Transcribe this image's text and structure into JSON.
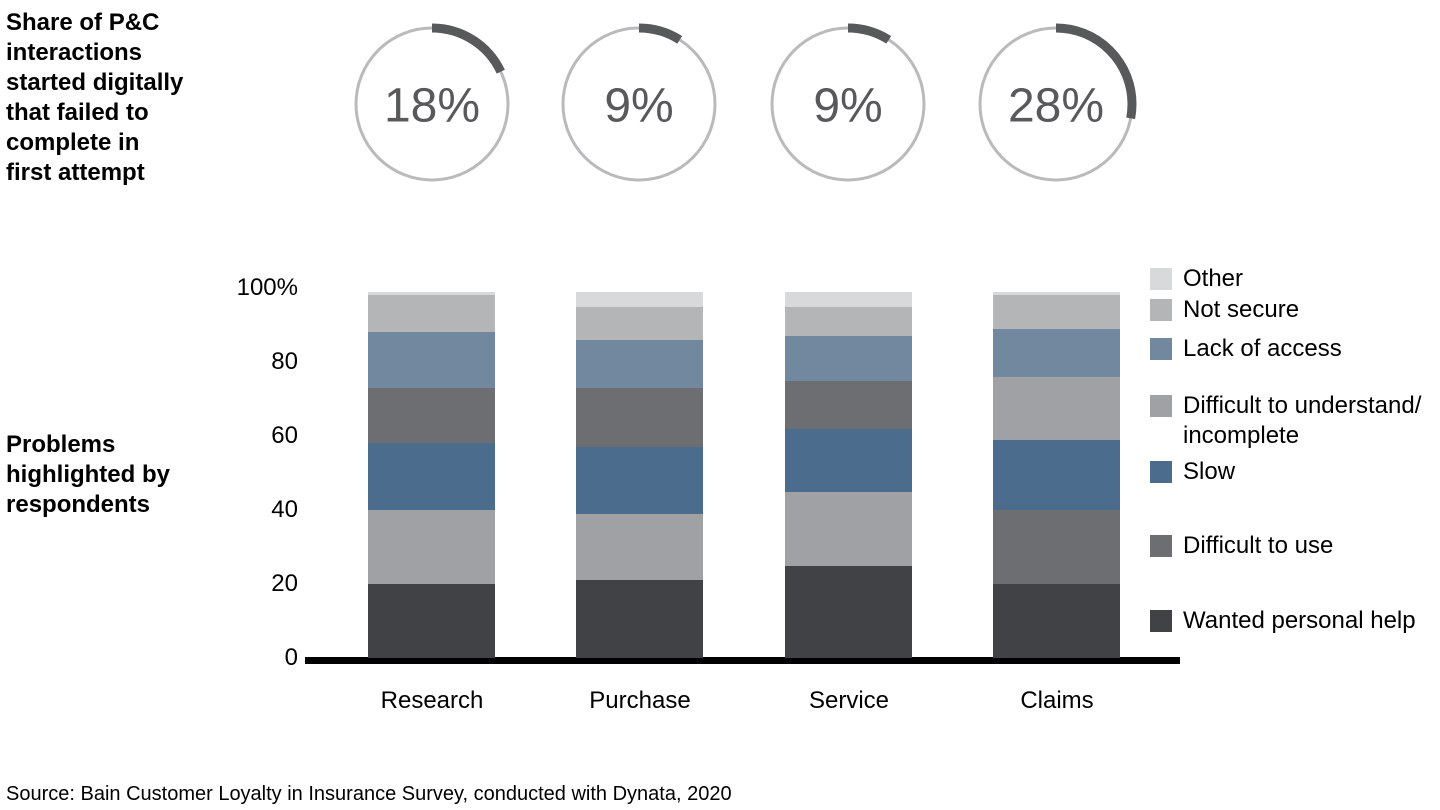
{
  "page": {
    "background": "#ffffff"
  },
  "titles": {
    "share": "Share of P&C\ninteractions\nstarted digitally\nthat failed to\ncomplete in\nfirst attempt",
    "problems": "Problems\nhighlighted by\nrespondents"
  },
  "donuts": {
    "ring_color": "#b9babc",
    "arc_color": "#58595b",
    "value_color": "#58595b",
    "items": [
      {
        "category": "Research",
        "percent": 18,
        "label": "18%"
      },
      {
        "category": "Purchase",
        "percent": 9,
        "label": "9%"
      },
      {
        "category": "Service",
        "percent": 9,
        "label": "9%"
      },
      {
        "category": "Claims",
        "percent": 28,
        "label": "28%"
      }
    ]
  },
  "chart_data": {
    "type": "bar",
    "variant": "100%-stacked-column",
    "title": "Problems highlighted by respondents",
    "xlabel": "",
    "ylabel": "",
    "ylim": [
      0,
      100
    ],
    "y_ticks": [
      "100%",
      "80",
      "60",
      "40",
      "20",
      "0"
    ],
    "y_tick_values": [
      100,
      80,
      60,
      40,
      20,
      0
    ],
    "grid": false,
    "legend_position": "right",
    "categories": [
      "Research",
      "Purchase",
      "Service",
      "Claims"
    ],
    "series": [
      {
        "name": "Other",
        "color": "#d8d9db",
        "textured": false,
        "values": [
          1,
          4,
          4,
          1
        ]
      },
      {
        "name": "Not secure",
        "color": "#b3b5b7",
        "textured": false,
        "values": [
          10,
          9,
          8,
          9
        ]
      },
      {
        "name": "Lack of access",
        "color": "#71889f",
        "textured": false,
        "values": [
          15,
          13,
          12,
          13
        ]
      },
      {
        "name": "Difficult to understand/incomplete",
        "color": "#9fa1a4",
        "textured": true,
        "values": [
          20,
          18,
          20,
          17
        ]
      },
      {
        "name": "Slow",
        "color": "#4b6c8d",
        "textured": false,
        "values": [
          18,
          18,
          17,
          19
        ]
      },
      {
        "name": "Difficult to use",
        "color": "#6d6e71",
        "textured": false,
        "values": [
          15,
          16,
          13,
          20
        ]
      },
      {
        "name": "Wanted personal help",
        "color": "#404246",
        "textured": false,
        "values": [
          20,
          21,
          25,
          20
        ]
      }
    ],
    "stacks": {
      "Research": [
        [
          "Wanted personal help",
          20
        ],
        [
          "Difficult to understand/incomplete",
          20
        ],
        [
          "Slow",
          18
        ],
        [
          "Difficult to use",
          15
        ],
        [
          "Lack of access",
          15
        ],
        [
          "Not secure",
          10
        ],
        [
          "Other",
          1
        ]
      ],
      "Purchase": [
        [
          "Wanted personal help",
          21
        ],
        [
          "Difficult to understand/incomplete",
          18
        ],
        [
          "Slow",
          18
        ],
        [
          "Difficult to use",
          16
        ],
        [
          "Lack of access",
          13
        ],
        [
          "Not secure",
          9
        ],
        [
          "Other",
          4
        ]
      ],
      "Service": [
        [
          "Wanted personal help",
          25
        ],
        [
          "Difficult to understand/incomplete",
          20
        ],
        [
          "Slow",
          17
        ],
        [
          "Difficult to use",
          13
        ],
        [
          "Lack of access",
          12
        ],
        [
          "Not secure",
          8
        ],
        [
          "Other",
          4
        ]
      ],
      "Claims": [
        [
          "Wanted personal help",
          20
        ],
        [
          "Difficult to use",
          20
        ],
        [
          "Slow",
          19
        ],
        [
          "Difficult to understand/incomplete",
          17
        ],
        [
          "Lack of access",
          13
        ],
        [
          "Not secure",
          9
        ],
        [
          "Other",
          1
        ]
      ]
    }
  },
  "legend": {
    "items": [
      {
        "label": "Other",
        "series": "Other"
      },
      {
        "label": "Not secure",
        "series": "Not secure"
      },
      {
        "label": "Lack of access",
        "series": "Lack of access"
      },
      {
        "label": "Difficult to understand/\nincomplete",
        "series": "Difficult to understand/incomplete"
      },
      {
        "label": "Slow",
        "series": "Slow"
      },
      {
        "label": "Difficult to use",
        "series": "Difficult to use"
      },
      {
        "label": "Wanted personal help",
        "series": "Wanted personal help"
      }
    ]
  },
  "footer": {
    "source": "Source: Bain Customer Loyalty in Insurance Survey, conducted with Dynata, 2020"
  }
}
